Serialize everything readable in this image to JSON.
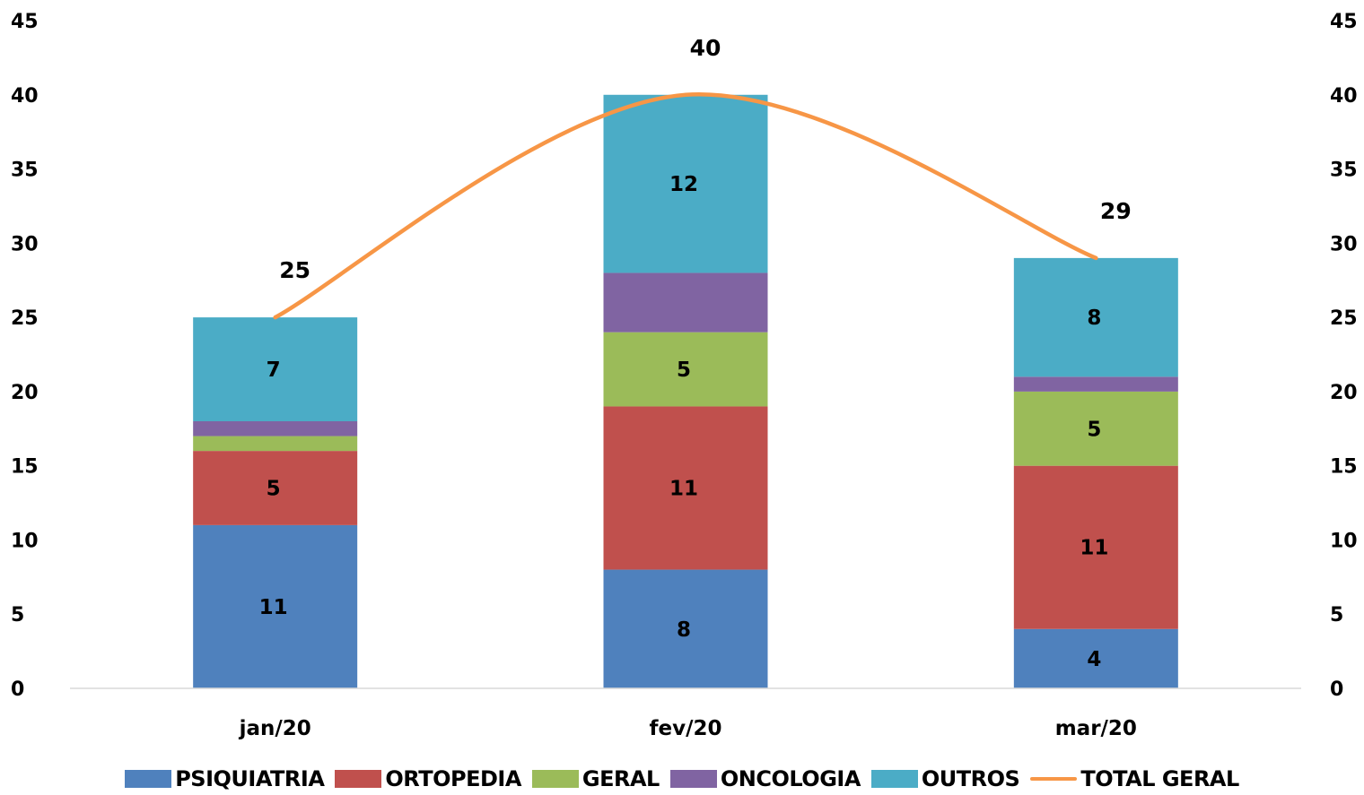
{
  "chart_data": {
    "type": "bar",
    "stacked": true,
    "categories": [
      "jan/20",
      "fev/20",
      "mar/20"
    ],
    "ylim": [
      0,
      45
    ],
    "yticks": [
      "0",
      "5",
      "10",
      "15",
      "20",
      "25",
      "30",
      "35",
      "40",
      "45"
    ],
    "y2lim": [
      0,
      45
    ],
    "series": [
      {
        "name": "PSIQUIATRIA",
        "color": "#4f81bd",
        "values": [
          11,
          8,
          4
        ],
        "labels": [
          "11",
          "8",
          "4"
        ]
      },
      {
        "name": "ORTOPEDIA",
        "color": "#c0504d",
        "values": [
          5,
          11,
          11
        ],
        "labels": [
          "5",
          "11",
          "11"
        ]
      },
      {
        "name": "GERAL",
        "color": "#9bbb59",
        "values": [
          1,
          5,
          5
        ],
        "labels": [
          "",
          "5",
          "5"
        ]
      },
      {
        "name": "ONCOLOGIA",
        "color": "#8064a2",
        "values": [
          1,
          4,
          1
        ],
        "labels": [
          "",
          "",
          ""
        ]
      },
      {
        "name": "OUTROS",
        "color": "#4bacc6",
        "values": [
          7,
          12,
          8
        ],
        "labels": [
          "7",
          "12",
          "8"
        ]
      }
    ],
    "line": {
      "name": "TOTAL GERAL",
      "type": "line",
      "color": "#f79646",
      "values": [
        25,
        40,
        29
      ],
      "labels": [
        "25",
        "40",
        "29"
      ]
    },
    "legend_position": "bottom",
    "grid": false
  }
}
